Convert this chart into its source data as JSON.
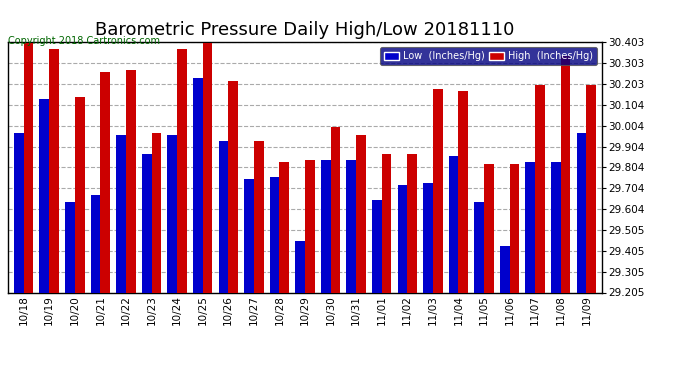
{
  "title": "Barometric Pressure Daily High/Low 20181110",
  "copyright": "Copyright 2018 Cartronics.com",
  "categories": [
    "10/18",
    "10/19",
    "10/20",
    "10/21",
    "10/22",
    "10/23",
    "10/24",
    "10/25",
    "10/26",
    "10/27",
    "10/28",
    "10/29",
    "10/30",
    "10/31",
    "11/01",
    "11/02",
    "11/03",
    "11/04",
    "11/05",
    "11/06",
    "11/07",
    "11/08",
    "11/09"
  ],
  "low_values": [
    29.97,
    30.13,
    29.64,
    29.67,
    29.96,
    29.87,
    29.96,
    30.23,
    29.93,
    29.75,
    29.76,
    29.45,
    29.84,
    29.84,
    29.65,
    29.72,
    29.73,
    29.86,
    29.64,
    29.43,
    29.83,
    29.83,
    29.97
  ],
  "high_values": [
    30.4,
    30.37,
    30.14,
    30.26,
    30.27,
    29.97,
    30.37,
    30.4,
    30.22,
    29.93,
    29.83,
    29.84,
    30.0,
    29.96,
    29.87,
    29.87,
    30.18,
    30.17,
    29.82,
    29.82,
    30.2,
    30.34,
    30.2
  ],
  "low_color": "#0000cc",
  "high_color": "#cc0000",
  "bg_color": "#ffffff",
  "grid_color": "#aaaaaa",
  "ylim_min": 29.205,
  "ylim_max": 30.403,
  "yticks": [
    29.205,
    29.305,
    29.405,
    29.505,
    29.604,
    29.704,
    29.804,
    29.904,
    30.004,
    30.104,
    30.203,
    30.303,
    30.403
  ],
  "legend_low_label": "Low  (Inches/Hg)",
  "legend_high_label": "High  (Inches/Hg)",
  "title_fontsize": 13,
  "copyright_fontsize": 7,
  "bar_width": 0.38
}
